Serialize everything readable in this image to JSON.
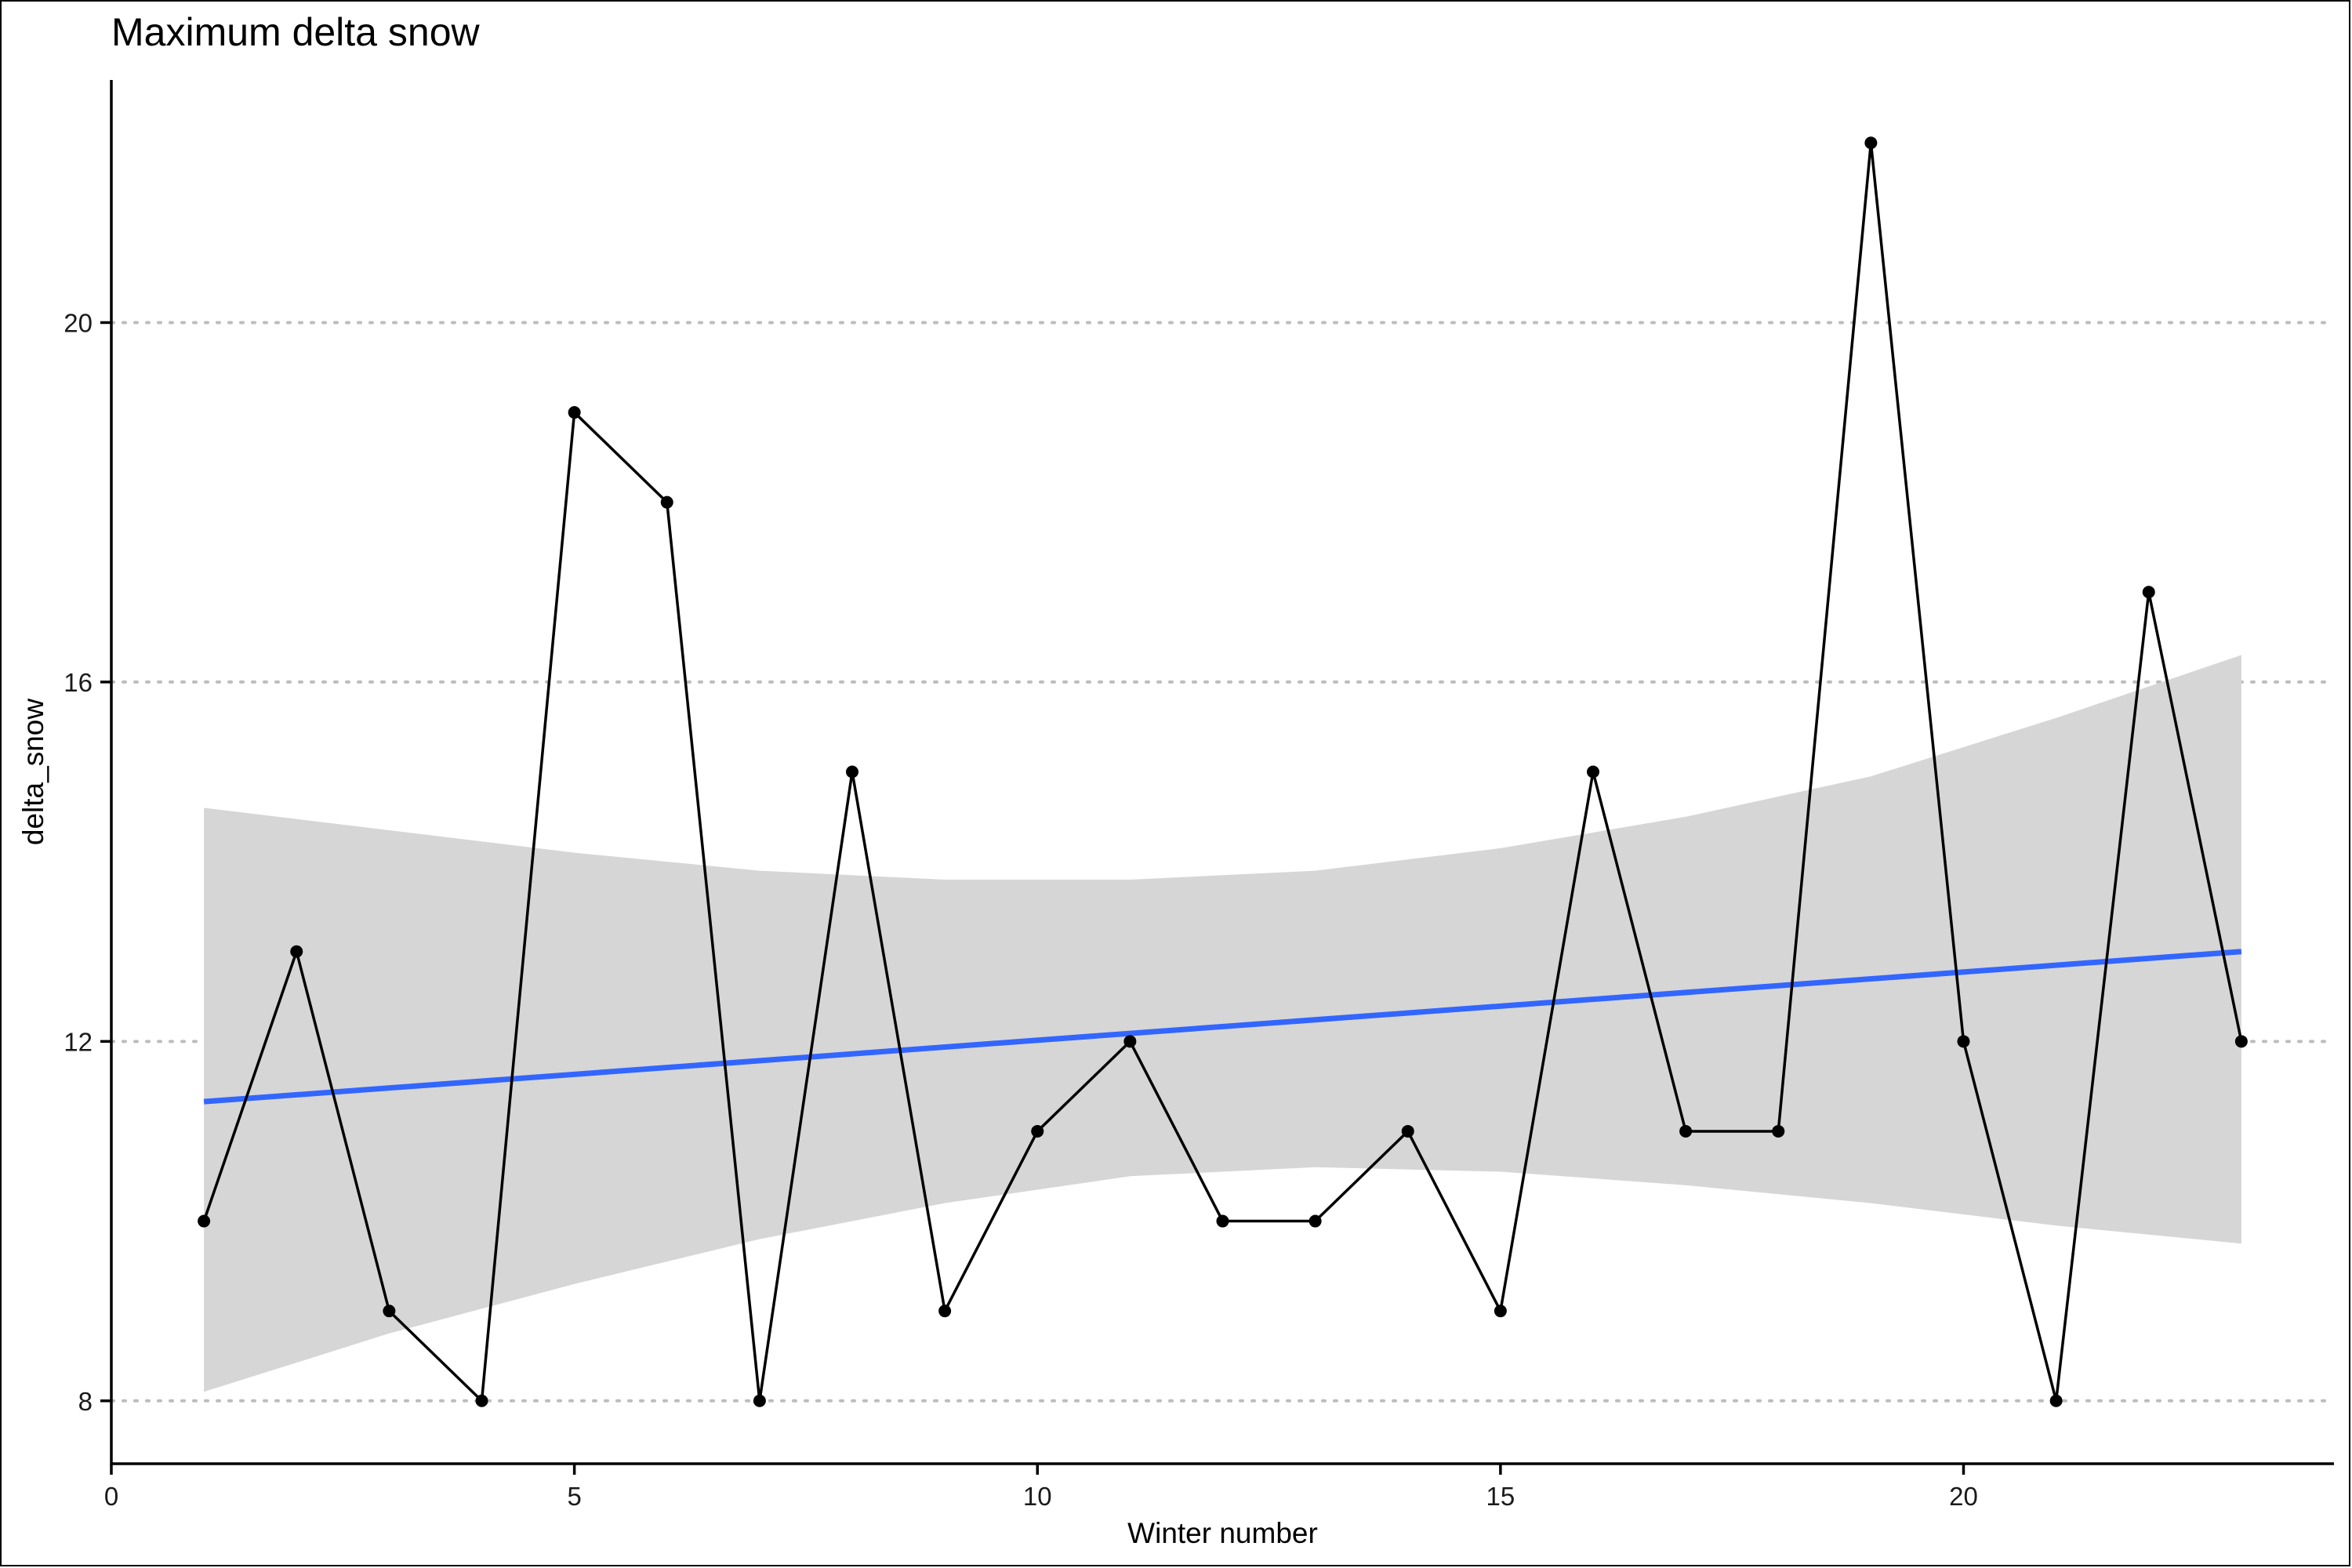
{
  "chart_data": {
    "type": "line",
    "title": "Maximum delta snow",
    "xlabel": "Winter number",
    "ylabel": "delta_snow",
    "xlim": [
      0,
      24
    ],
    "ylim": [
      7.3,
      22.7
    ],
    "xticks": [
      0,
      5,
      10,
      15,
      20
    ],
    "yticks": [
      8,
      12,
      16,
      20
    ],
    "grid": "horizontal-dotted",
    "series": [
      {
        "x": [
          1,
          2,
          3,
          4,
          5,
          6,
          7,
          8,
          9,
          10,
          11,
          12,
          13,
          14,
          15,
          16,
          17,
          18,
          19,
          20,
          21,
          22,
          23
        ],
        "values": [
          10,
          13,
          9,
          8,
          19,
          18,
          8,
          15,
          9,
          11,
          12,
          10,
          10,
          11,
          9,
          15,
          11,
          11,
          22,
          12,
          8,
          17,
          12
        ]
      }
    ],
    "trend": {
      "type": "linear-fit",
      "x": [
        1,
        23
      ],
      "values": [
        11.33,
        13.0
      ],
      "color": "#3366FF"
    },
    "confidence_band": {
      "color": "#d6d6d6",
      "x": [
        1,
        3,
        5,
        7,
        9,
        11,
        13,
        15,
        17,
        19,
        21,
        23
      ],
      "lower": [
        8.1,
        8.75,
        9.3,
        9.8,
        10.2,
        10.5,
        10.6,
        10.55,
        10.4,
        10.2,
        9.95,
        9.75
      ],
      "upper": [
        14.6,
        14.35,
        14.1,
        13.9,
        13.8,
        13.8,
        13.9,
        14.15,
        14.5,
        14.95,
        15.6,
        16.3
      ]
    },
    "colors": {
      "line": "#000000",
      "points": "#000000",
      "grid": "#bdbdbd",
      "axis": "#000000"
    }
  }
}
